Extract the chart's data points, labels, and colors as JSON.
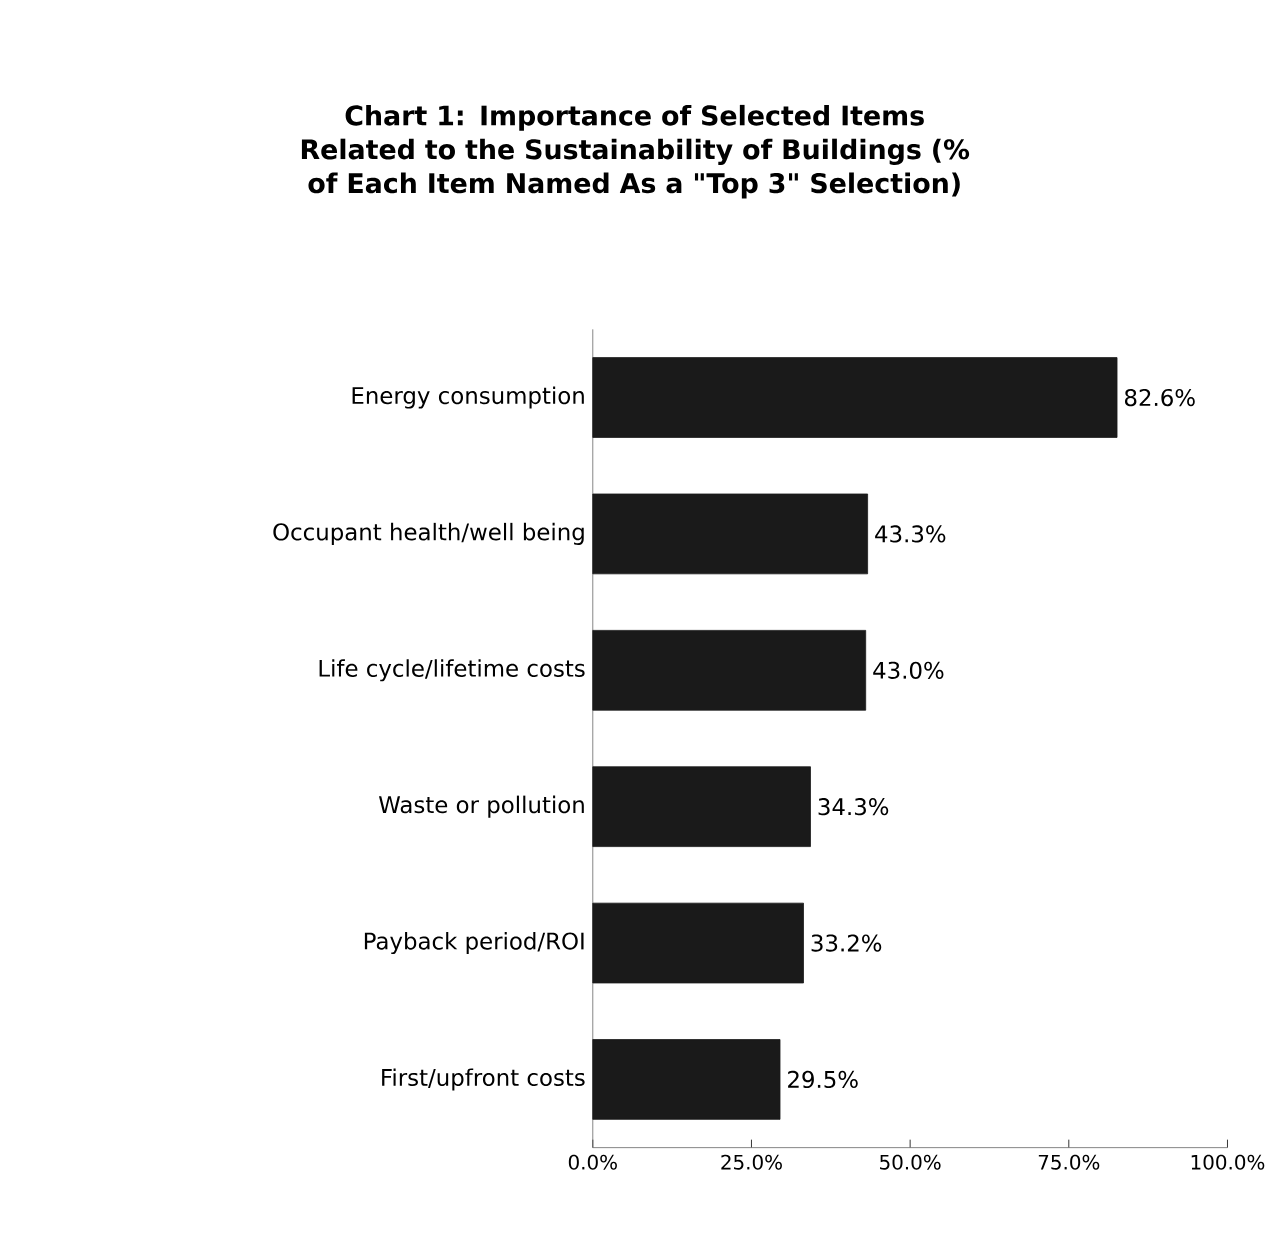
{
  "chart_data": {
    "type": "bar",
    "orientation": "horizontal",
    "title": "Chart 1: Importance of Selected Items Related to the Sustainability of Buildings (% of Each Item Named As a \"Top 3\" Selection)",
    "categories": [
      "Energy consumption",
      "Occupant health/well being",
      "Life cycle/lifetime costs",
      "Waste or pollution",
      "Payback period/ROI",
      "First/upfront costs"
    ],
    "values": [
      82.6,
      43.3,
      43.0,
      34.3,
      33.2,
      29.5
    ],
    "value_labels": [
      "82.6%",
      "43.3%",
      "43.0%",
      "34.3%",
      "33.2%",
      "29.5%"
    ],
    "color": "#1a1a1a",
    "xlim": [
      0,
      100
    ],
    "xticks": [
      {
        "value": 0,
        "label": "0.0%"
      },
      {
        "value": 25,
        "label": "25.0%"
      },
      {
        "value": 50,
        "label": "50.0%"
      },
      {
        "value": 75,
        "label": "75.0%"
      },
      {
        "value": 100,
        "label": "100.0%"
      }
    ]
  }
}
